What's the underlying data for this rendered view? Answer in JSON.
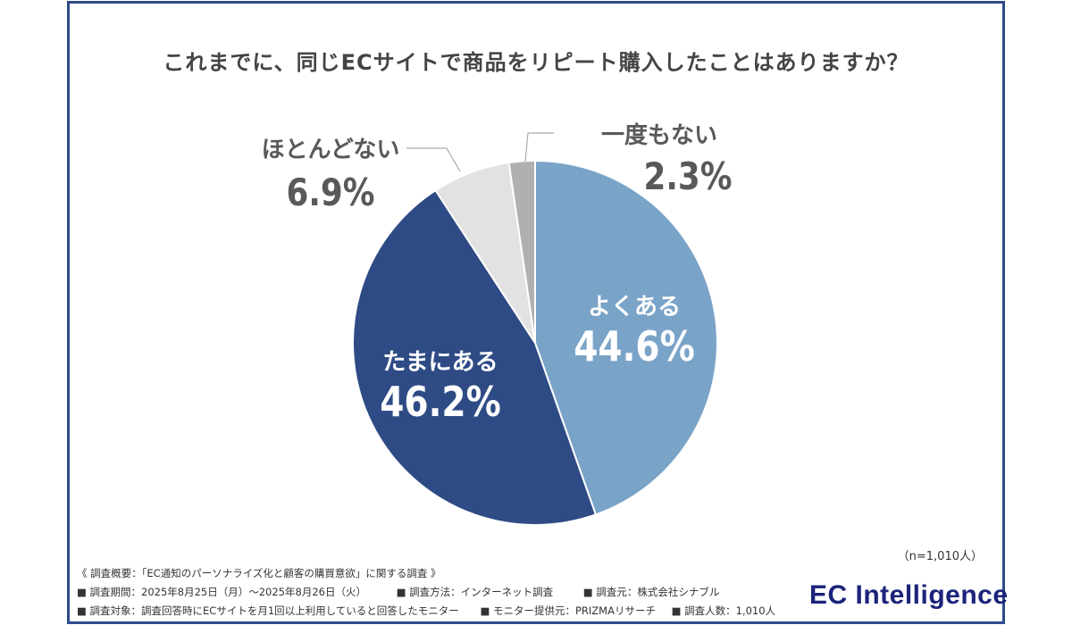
{
  "chart_data": {
    "type": "pie",
    "title": "これまでに、同じECサイトで商品をリピート購入したことはありますか？",
    "start_angle": "top",
    "direction": "clockwise",
    "slices": [
      {
        "label": "よくある",
        "value": 44.6,
        "display": "44.6%",
        "color": "#7aa3c8",
        "text_color": "#ffffff",
        "label_position": "inside"
      },
      {
        "label": "たまにある",
        "value": 46.2,
        "display": "46.2%",
        "color": "#2e4b85",
        "text_color": "#ffffff",
        "label_position": "inside"
      },
      {
        "label": "ほとんどない",
        "value": 6.9,
        "display": "6.9%",
        "color": "#e2e2e2",
        "text_color": "#595959",
        "label_position": "outside-left"
      },
      {
        "label": "一度もない",
        "value": 2.3,
        "display": "2.3%",
        "color": "#b0b0b0",
        "text_color": "#595959",
        "label_position": "outside-right"
      }
    ],
    "sample_note": "（n=1,010人）"
  },
  "footer": {
    "summary": "《 調査概要：「EC通知のパーソナライズ化と顧客の購買意欲」に関する調査 》",
    "period": "■ 調査期間：2025年8月25日（月）～2025年8月26日（火）",
    "method": "■ 調査方法：インターネット調査",
    "source": "■ 調査元：株式会社シナブル",
    "target": "■ 調査対象：調査回答時にECサイトを月1回以上利用していると回答したモニター",
    "provider": "■ モニター提供元：PRIZMAリサーチ",
    "count": "■ 調査人数：1,010人"
  },
  "logo": "EC Intelligence"
}
